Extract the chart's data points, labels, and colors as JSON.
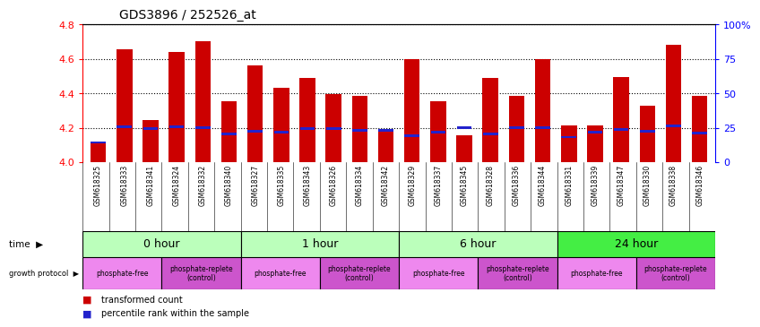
{
  "title": "GDS3896 / 252526_at",
  "samples": [
    "GSM618325",
    "GSM618333",
    "GSM618341",
    "GSM618324",
    "GSM618332",
    "GSM618340",
    "GSM618327",
    "GSM618335",
    "GSM618343",
    "GSM618326",
    "GSM618334",
    "GSM618342",
    "GSM618329",
    "GSM618337",
    "GSM618345",
    "GSM618328",
    "GSM618336",
    "GSM618344",
    "GSM618331",
    "GSM618339",
    "GSM618347",
    "GSM618330",
    "GSM618338",
    "GSM618346"
  ],
  "bar_heights": [
    4.115,
    4.655,
    4.245,
    4.64,
    4.705,
    4.355,
    4.565,
    4.435,
    4.49,
    4.395,
    4.385,
    4.175,
    4.6,
    4.355,
    4.155,
    4.49,
    4.385,
    4.6,
    4.215,
    4.215,
    4.495,
    4.33,
    4.68,
    4.385
  ],
  "percentile_heights": [
    4.115,
    4.205,
    4.195,
    4.205,
    4.2,
    4.165,
    4.18,
    4.175,
    4.195,
    4.195,
    4.185,
    4.185,
    4.155,
    4.175,
    4.2,
    4.165,
    4.2,
    4.2,
    4.145,
    4.175,
    4.19,
    4.18,
    4.21,
    4.17
  ],
  "bar_color": "#cc0000",
  "percentile_color": "#2222cc",
  "y_min": 4.0,
  "y_max": 4.8,
  "y_ticks_left": [
    4.0,
    4.2,
    4.4,
    4.6,
    4.8
  ],
  "y_ticks_right": [
    0,
    25,
    50,
    75,
    100
  ],
  "right_y_labels": [
    "0",
    "25",
    "50",
    "75",
    "100%"
  ],
  "dotted_lines": [
    4.2,
    4.4,
    4.6,
    4.8
  ],
  "time_groups": [
    {
      "label": "0 hour",
      "start": 0,
      "end": 6,
      "color": "#bbffbb"
    },
    {
      "label": "1 hour",
      "start": 6,
      "end": 12,
      "color": "#bbffbb"
    },
    {
      "label": "6 hour",
      "start": 12,
      "end": 18,
      "color": "#bbffbb"
    },
    {
      "label": "24 hour",
      "start": 18,
      "end": 24,
      "color": "#44ee44"
    }
  ],
  "protocol_groups": [
    {
      "label": "phosphate-free",
      "start": 0,
      "end": 3,
      "color": "#ee88ee"
    },
    {
      "label": "phosphate-replete\n(control)",
      "start": 3,
      "end": 6,
      "color": "#cc55cc"
    },
    {
      "label": "phosphate-free",
      "start": 6,
      "end": 9,
      "color": "#ee88ee"
    },
    {
      "label": "phosphate-replete\n(control)",
      "start": 9,
      "end": 12,
      "color": "#cc55cc"
    },
    {
      "label": "phosphate-free",
      "start": 12,
      "end": 15,
      "color": "#ee88ee"
    },
    {
      "label": "phosphate-replete\n(control)",
      "start": 15,
      "end": 18,
      "color": "#cc55cc"
    },
    {
      "label": "phosphate-free",
      "start": 18,
      "end": 21,
      "color": "#ee88ee"
    },
    {
      "label": "phosphate-replete\n(control)",
      "start": 21,
      "end": 24,
      "color": "#cc55cc"
    }
  ],
  "legend_bar_label": "transformed count",
  "legend_pct_label": "percentile rank within the sample",
  "bg_color": "#ffffff",
  "bar_width": 0.6,
  "xlabels_bg": "#cccccc",
  "n_samples": 24
}
